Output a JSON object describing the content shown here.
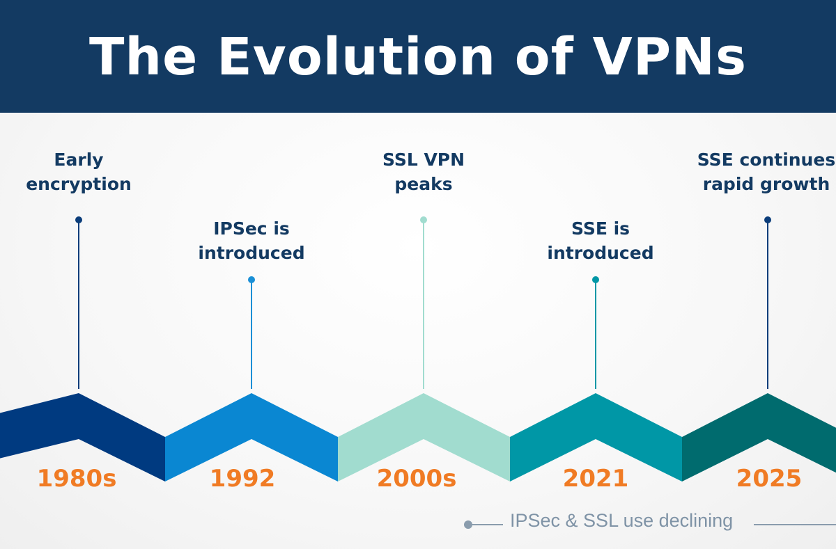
{
  "title": "The Evolution of VPNs",
  "timeline": [
    {
      "year": "1980s",
      "label_line1": "Early",
      "label_line2": "encryption",
      "color": "#003a80",
      "stem_color": "#0b3d7a"
    },
    {
      "year": "1992",
      "label_line1": "IPSec is",
      "label_line2": "introduced",
      "color": "#0a87d2",
      "stem_color": "#1a8fd6"
    },
    {
      "year": "2000s",
      "label_line1": "SSL VPN",
      "label_line2": "peaks",
      "color": "#a1dccf",
      "stem_color": "#a1dccf"
    },
    {
      "year": "2021",
      "label_line1": "SSE is",
      "label_line2": "introduced",
      "color": "#0097a6",
      "stem_color": "#0097a6"
    },
    {
      "year": "2025",
      "label_line1": "SSE continues",
      "label_line2": "rapid growth",
      "color": "#006b6e",
      "stem_color": "#0b3d7a"
    }
  ],
  "note": "IPSec & SSL use declining",
  "colors": {
    "header_bg": "#133a62",
    "year_text": "#f07b24",
    "label_text": "#133a62",
    "note_text": "#7f93a6",
    "note_line": "#8a9cad"
  }
}
